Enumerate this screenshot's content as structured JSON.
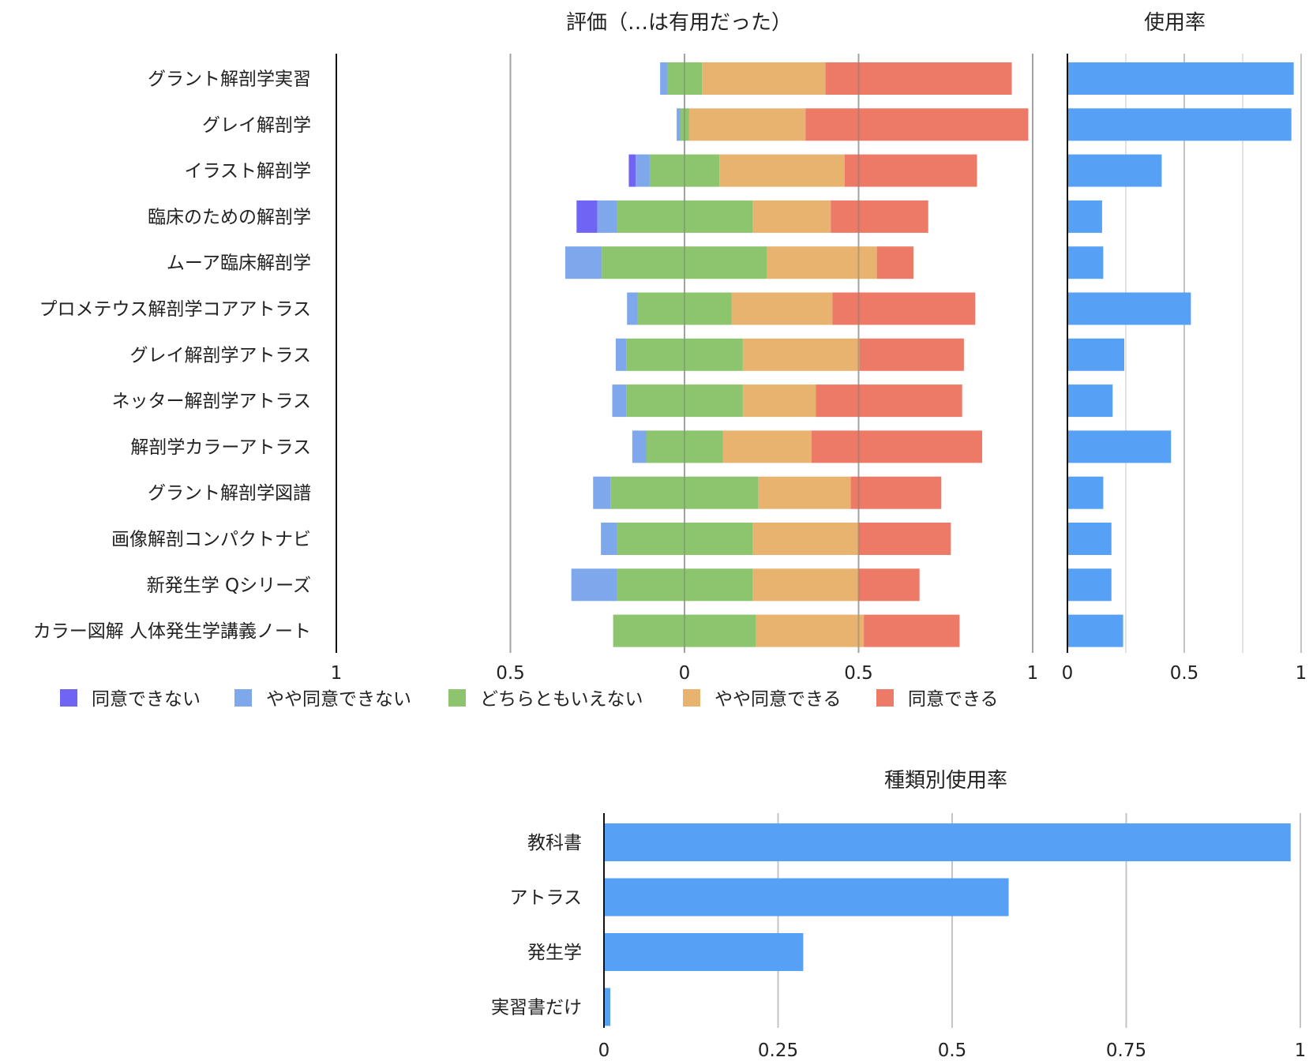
{
  "chart_data": [
    {
      "type": "bar",
      "subtype": "diverging-stacked-horizontal",
      "title": "評価（…は有用だった）",
      "categories": [
        "グラント解剖学実習",
        "グレイ解剖学",
        "イラスト解剖学",
        "臨床のための解剖学",
        "ムーア臨床解剖学",
        "プロメテウス解剖学コアアトラス",
        "グレイ解剖学アトラス",
        "ネッター解剖学アトラス",
        "解剖学カラーアトラス",
        "グラント解剖学図譜",
        "画像解剖コンパクトナビ",
        "新発生学 Qシリーズ",
        "カラー図解 人体発生学講義ノート"
      ],
      "series": [
        {
          "name": "同意できない",
          "color": "#7064f5",
          "values": [
            0.0,
            0.0,
            0.02,
            0.06,
            0.0,
            0.0,
            0.0,
            0.0,
            0.0,
            0.0,
            0.0,
            0.0,
            0.0
          ]
        },
        {
          "name": "やや同意できない",
          "color": "#7fa7ec",
          "values": [
            0.02,
            0.01,
            0.04,
            0.055,
            0.105,
            0.03,
            0.03,
            0.04,
            0.04,
            0.05,
            0.045,
            0.13,
            0.0
          ]
        },
        {
          "name": "どちらともいえない",
          "color": "#8cc56d",
          "values": [
            0.1,
            0.025,
            0.2,
            0.39,
            0.475,
            0.27,
            0.335,
            0.335,
            0.22,
            0.425,
            0.39,
            0.39,
            0.41
          ]
        },
        {
          "name": "やや同意できる",
          "color": "#e8b26f",
          "values": [
            0.355,
            0.335,
            0.36,
            0.225,
            0.315,
            0.29,
            0.335,
            0.21,
            0.255,
            0.265,
            0.305,
            0.305,
            0.31
          ]
        },
        {
          "name": "同意できる",
          "color": "#ec7a66",
          "values": [
            0.535,
            0.64,
            0.38,
            0.28,
            0.105,
            0.41,
            0.3,
            0.42,
            0.49,
            0.26,
            0.265,
            0.175,
            0.275
          ]
        }
      ],
      "xlim": [
        -1,
        1
      ],
      "ticks": [
        "1",
        "0.5",
        "0",
        "0.5",
        "1"
      ],
      "legend": "bottom",
      "grid": true
    },
    {
      "type": "bar",
      "orientation": "horizontal",
      "title": "使用率",
      "categories": [
        "グラント解剖学実習",
        "グレイ解剖学",
        "イラスト解剖学",
        "臨床のための解剖学",
        "ムーア臨床解剖学",
        "プロメテウス解剖学コアアトラス",
        "グレイ解剖学アトラス",
        "ネッター解剖学アトラス",
        "解剖学カラーアトラス",
        "グラント解剖学図譜",
        "画像解剖コンパクトナビ",
        "新発生学 Qシリーズ",
        "カラー図解 人体発生学講義ノート"
      ],
      "values": [
        0.965,
        0.955,
        0.4,
        0.145,
        0.15,
        0.525,
        0.24,
        0.19,
        0.44,
        0.15,
        0.185,
        0.185,
        0.235
      ],
      "color": "#56a1f5",
      "xlim": [
        0,
        1
      ],
      "ticks": [
        "0",
        "0.5",
        "1"
      ],
      "grid": true
    },
    {
      "type": "bar",
      "orientation": "horizontal",
      "title": "種類別使用率",
      "categories": [
        "教科書",
        "アトラス",
        "発生学",
        "実習書だけ"
      ],
      "values": [
        0.985,
        0.58,
        0.285,
        0.008
      ],
      "color": "#56a1f5",
      "xlim": [
        0,
        1
      ],
      "ticks": [
        "0",
        "0.25",
        "0.5",
        "0.75",
        "1"
      ],
      "grid": true
    }
  ]
}
